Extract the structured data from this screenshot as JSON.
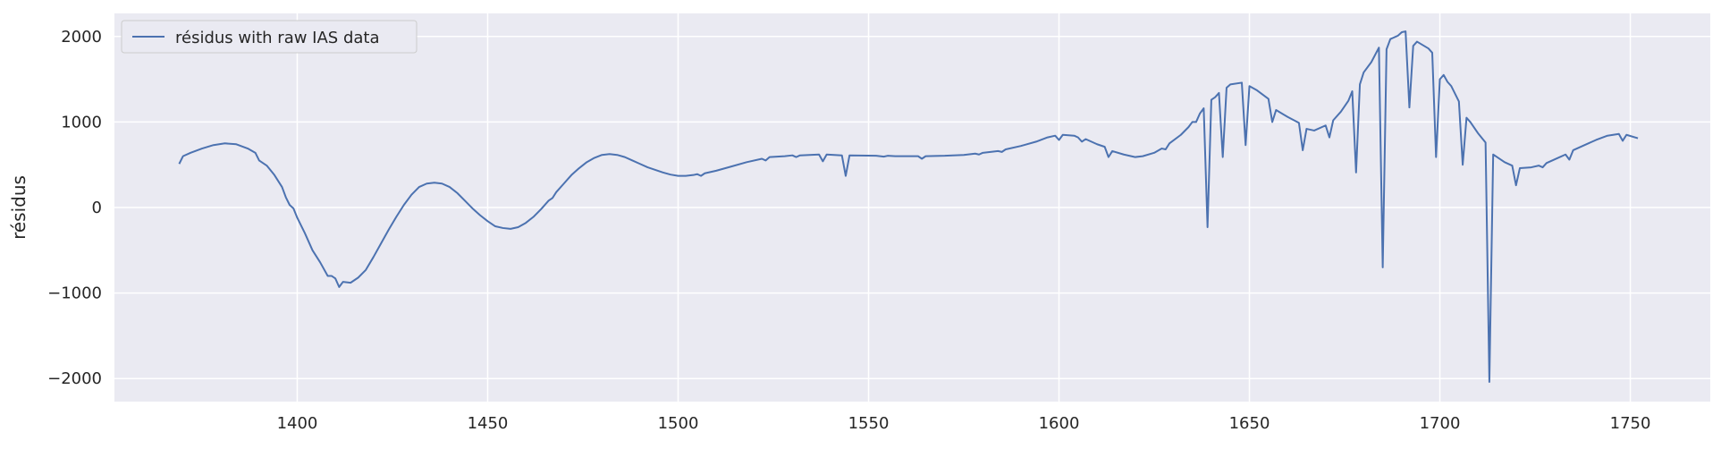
{
  "chart_data": {
    "type": "line",
    "y_label": "résidus",
    "grid": true,
    "legend": "upper left",
    "xlim": [
      1352,
      1771
    ],
    "ylim": [
      -2270,
      2270
    ],
    "xticks": [
      1400,
      1450,
      1500,
      1550,
      1600,
      1650,
      1700,
      1750
    ],
    "yticks": [
      -2000,
      -1000,
      0,
      1000,
      2000
    ],
    "yticks_labels": [
      {
        "value": -2000,
        "label": "−2000"
      },
      {
        "value": -1000,
        "label": "−1000"
      },
      {
        "value": 0,
        "label": "0"
      },
      {
        "value": 1000,
        "label": "1000"
      },
      {
        "value": 2000,
        "label": "2000"
      }
    ],
    "x": [
      1369,
      1370,
      1372,
      1375,
      1378,
      1381,
      1384,
      1387,
      1389,
      1390,
      1392,
      1394,
      1396,
      1397,
      1398,
      1399,
      1400,
      1402,
      1404,
      1406,
      1408,
      1409,
      1410,
      1411,
      1412,
      1414,
      1416,
      1418,
      1420,
      1422,
      1424,
      1426,
      1428,
      1430,
      1432,
      1434,
      1436,
      1438,
      1440,
      1442,
      1444,
      1446,
      1448,
      1450,
      1452,
      1454,
      1456,
      1458,
      1460,
      1462,
      1464,
      1466,
      1467,
      1468,
      1470,
      1472,
      1474,
      1476,
      1478,
      1480,
      1482,
      1484,
      1486,
      1488,
      1490,
      1492,
      1494,
      1496,
      1498,
      1500,
      1502,
      1504,
      1505,
      1506,
      1507,
      1510,
      1514,
      1518,
      1522,
      1523,
      1524,
      1528,
      1530,
      1531,
      1532,
      1537,
      1538,
      1539,
      1543,
      1544,
      1545,
      1552,
      1554,
      1555,
      1557,
      1563,
      1564,
      1565,
      1570,
      1575,
      1578,
      1579,
      1580,
      1584,
      1585,
      1586,
      1590,
      1594,
      1597,
      1599,
      1600,
      1601,
      1604,
      1605,
      1606,
      1607,
      1610,
      1612,
      1613,
      1614,
      1617,
      1620,
      1622,
      1625,
      1627,
      1628,
      1629,
      1632,
      1634,
      1635,
      1636,
      1637,
      1638,
      1639,
      1640,
      1641,
      1642,
      1643,
      1644,
      1645,
      1648,
      1649,
      1650,
      1652,
      1655,
      1656,
      1657,
      1660,
      1663,
      1664,
      1665,
      1667,
      1670,
      1671,
      1672,
      1674,
      1676,
      1677,
      1678,
      1679,
      1680,
      1682,
      1684,
      1685,
      1686,
      1687,
      1689,
      1690,
      1691,
      1692,
      1693,
      1694,
      1697,
      1698,
      1699,
      1700,
      1701,
      1702,
      1703,
      1705,
      1706,
      1707,
      1708,
      1710,
      1712,
      1713,
      1714,
      1717,
      1719,
      1720,
      1721,
      1724,
      1726,
      1727,
      1728,
      1731,
      1733,
      1734,
      1735,
      1738,
      1741,
      1744,
      1747,
      1748,
      1749,
      1752
    ],
    "series": [
      {
        "name": "résidus with raw IAS data",
        "color": "#4c72b0",
        "values": [
          510,
          600,
          640,
          690,
          730,
          750,
          740,
          690,
          640,
          550,
          490,
          380,
          240,
          120,
          30,
          -10,
          -120,
          -300,
          -500,
          -640,
          -800,
          -800,
          -830,
          -930,
          -870,
          -880,
          -820,
          -730,
          -580,
          -420,
          -260,
          -110,
          30,
          150,
          240,
          280,
          290,
          280,
          240,
          170,
          80,
          -10,
          -90,
          -160,
          -220,
          -240,
          -250,
          -230,
          -180,
          -110,
          -20,
          80,
          110,
          180,
          280,
          380,
          460,
          530,
          580,
          615,
          625,
          615,
          590,
          550,
          510,
          470,
          440,
          410,
          385,
          370,
          370,
          380,
          390,
          370,
          400,
          430,
          480,
          530,
          570,
          550,
          590,
          600,
          610,
          590,
          610,
          620,
          540,
          620,
          610,
          370,
          610,
          605,
          595,
          605,
          600,
          600,
          570,
          600,
          605,
          615,
          630,
          620,
          640,
          660,
          650,
          680,
          720,
          770,
          820,
          840,
          790,
          850,
          840,
          820,
          770,
          800,
          740,
          710,
          590,
          660,
          620,
          590,
          600,
          640,
          690,
          680,
          750,
          850,
          940,
          1000,
          1000,
          1100,
          1160,
          -230,
          1260,
          1290,
          1340,
          590,
          1400,
          1440,
          1460,
          730,
          1420,
          1370,
          1270,
          1000,
          1140,
          1060,
          990,
          670,
          920,
          900,
          960,
          820,
          1020,
          1120,
          1250,
          1360,
          410,
          1440,
          1580,
          1700,
          1870,
          -700,
          1850,
          1970,
          2010,
          2050,
          2060,
          1170,
          1890,
          1940,
          1860,
          1810,
          590,
          1500,
          1550,
          1470,
          1420,
          1240,
          500,
          1050,
          1000,
          870,
          760,
          -2040,
          620,
          530,
          490,
          260,
          460,
          470,
          490,
          470,
          520,
          580,
          620,
          560,
          670,
          730,
          790,
          840,
          860,
          780,
          850,
          810
        ]
      }
    ]
  }
}
